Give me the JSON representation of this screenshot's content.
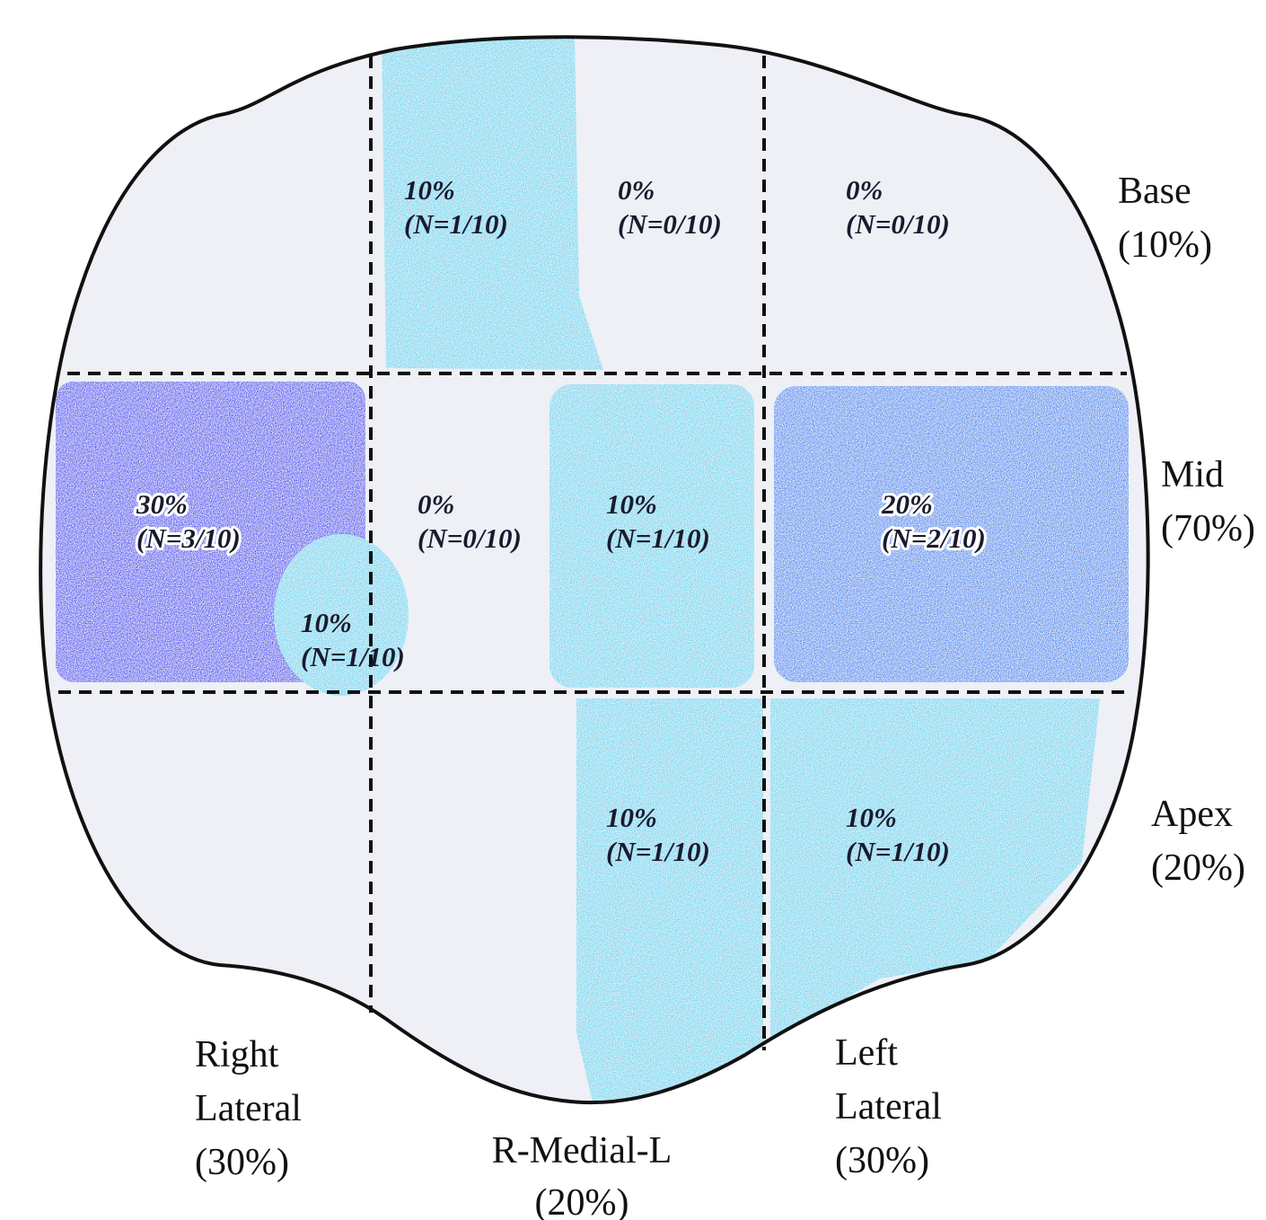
{
  "regions": [
    {
      "percent": "10%",
      "count": "(N=1/10)"
    },
    {
      "percent": "0%",
      "count": "(N=0/10)"
    },
    {
      "percent": "0%",
      "count": "(N=0/10)"
    },
    {
      "percent": "30%",
      "count": "(N=3/10)"
    },
    {
      "percent": "10%",
      "count": "(N=1/10)"
    },
    {
      "percent": "0%",
      "count": "(N=0/10)"
    },
    {
      "percent": "10%",
      "count": "(N=1/10)"
    },
    {
      "percent": "20%",
      "count": "(N=2/10)"
    },
    {
      "percent": "10%",
      "count": "(N=1/10)"
    },
    {
      "percent": "10%",
      "count": "(N=1/10)"
    }
  ],
  "row_labels": [
    {
      "name": "Base",
      "share": "(10%)"
    },
    {
      "name": "Mid",
      "share": "(70%)"
    },
    {
      "name": "Apex",
      "share": "(20%)"
    }
  ],
  "column_labels": [
    {
      "lines": [
        "Right",
        "Lateral",
        "(30%)"
      ]
    },
    {
      "lines": [
        "R-Medial-L",
        "(20%)"
      ]
    },
    {
      "lines": [
        "Left",
        "Lateral",
        "(30%)"
      ]
    }
  ]
}
